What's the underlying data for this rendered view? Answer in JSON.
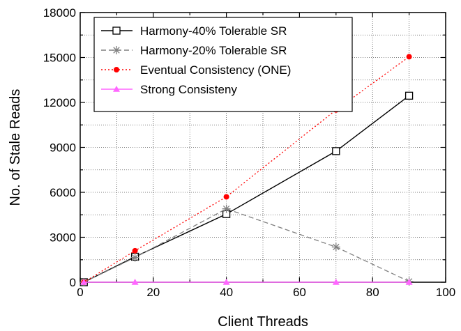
{
  "chart_data": {
    "type": "line",
    "title": "",
    "xlabel": "Client Threads",
    "ylabel": "No. of Stale Reads",
    "xlim": [
      0,
      100
    ],
    "ylim": [
      0,
      18000
    ],
    "xticks": [
      0,
      20,
      40,
      60,
      80,
      100
    ],
    "yticks": [
      0,
      3000,
      6000,
      9000,
      12000,
      15000,
      18000
    ],
    "grid": true,
    "legend_position": "top-left",
    "series": [
      {
        "name": "Harmony-40% Tolerable SR",
        "color": "#000000",
        "line_style": "solid",
        "marker": "open-square",
        "points": [
          [
            1,
            0
          ],
          [
            15,
            1700
          ],
          [
            40,
            4550
          ],
          [
            70,
            8750
          ],
          [
            90,
            12450
          ]
        ]
      },
      {
        "name": "Harmony-20% Tolerable SR",
        "color": "#808080",
        "line_style": "dashed",
        "marker": "asterisk",
        "points": [
          [
            1,
            0
          ],
          [
            15,
            1650
          ],
          [
            40,
            4900
          ],
          [
            70,
            2350
          ],
          [
            90,
            50
          ]
        ]
      },
      {
        "name": "Eventual Consistency (ONE)",
        "color": "#ff0000",
        "line_style": "dotted",
        "marker": "filled-circle",
        "points": [
          [
            1,
            0
          ],
          [
            15,
            2100
          ],
          [
            40,
            5700
          ],
          [
            70,
            11500
          ],
          [
            90,
            15050
          ]
        ]
      },
      {
        "name": "Strong Consisteny",
        "color": "#ff66ff",
        "line_style": "solid",
        "marker": "filled-triangle",
        "points": [
          [
            1,
            0
          ],
          [
            15,
            0
          ],
          [
            40,
            0
          ],
          [
            70,
            0
          ],
          [
            90,
            0
          ]
        ]
      }
    ]
  }
}
